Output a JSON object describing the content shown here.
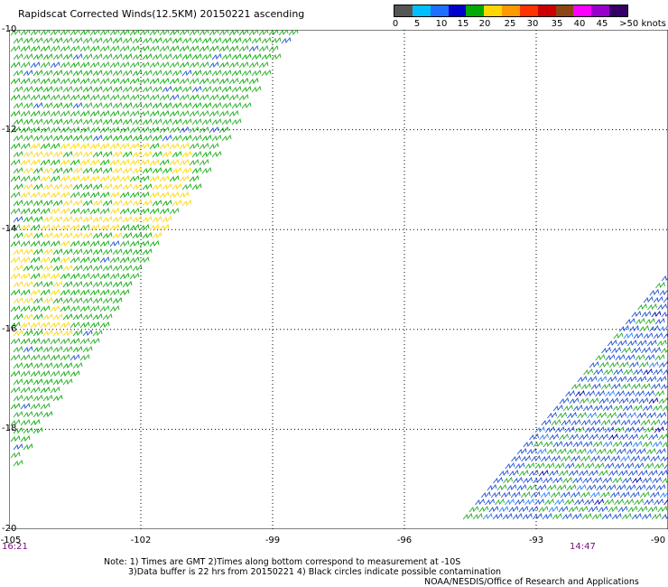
{
  "header": {
    "title": "Rapidscat Corrected Winds(12.5KM) 20150221 ascending"
  },
  "legend": {
    "colors": [
      "#555555",
      "#00bfff",
      "#1e6fff",
      "#0000cc",
      "#00aa00",
      "#ffd700",
      "#ff9900",
      "#ff3300",
      "#cc0000",
      "#8b4513",
      "#ff00ff",
      "#9900cc",
      "#330066"
    ],
    "labels": [
      "0",
      "5",
      "10",
      "15",
      "20",
      "25",
      "30",
      "35",
      "40",
      "45",
      ">50 knots"
    ]
  },
  "axes": {
    "lat_labels": [
      "-10",
      "-12",
      "-14",
      "-16",
      "-18",
      "-20"
    ],
    "lon_labels": [
      "-105",
      "-102",
      "-99",
      "-96",
      "-93",
      "-90"
    ]
  },
  "times": {
    "left": "16:21",
    "right": "14:47"
  },
  "notes": {
    "line1": "Note: 1) Times are GMT 2)Times along bottom correspond to measurement at -10S",
    "line2": "3)Data buffer is 22 hrs from 20150221 4) Black circles indicate possible contamination",
    "line3": "NOAA/NESDIS/Office of Research and Applications"
  },
  "map_data": {
    "type": "wind-barb-map",
    "lat_range": [
      -20,
      -10
    ],
    "lon_range": [
      -105,
      -90
    ],
    "units": "knots",
    "swaths": [
      {
        "name": "west swath",
        "time": "16:21",
        "dominant_speed_knots": [
          15,
          25
        ],
        "direction": "SE"
      },
      {
        "name": "east swath",
        "time": "14:47",
        "dominant_speed_knots": [
          10,
          20
        ],
        "direction": "SE"
      }
    ]
  }
}
